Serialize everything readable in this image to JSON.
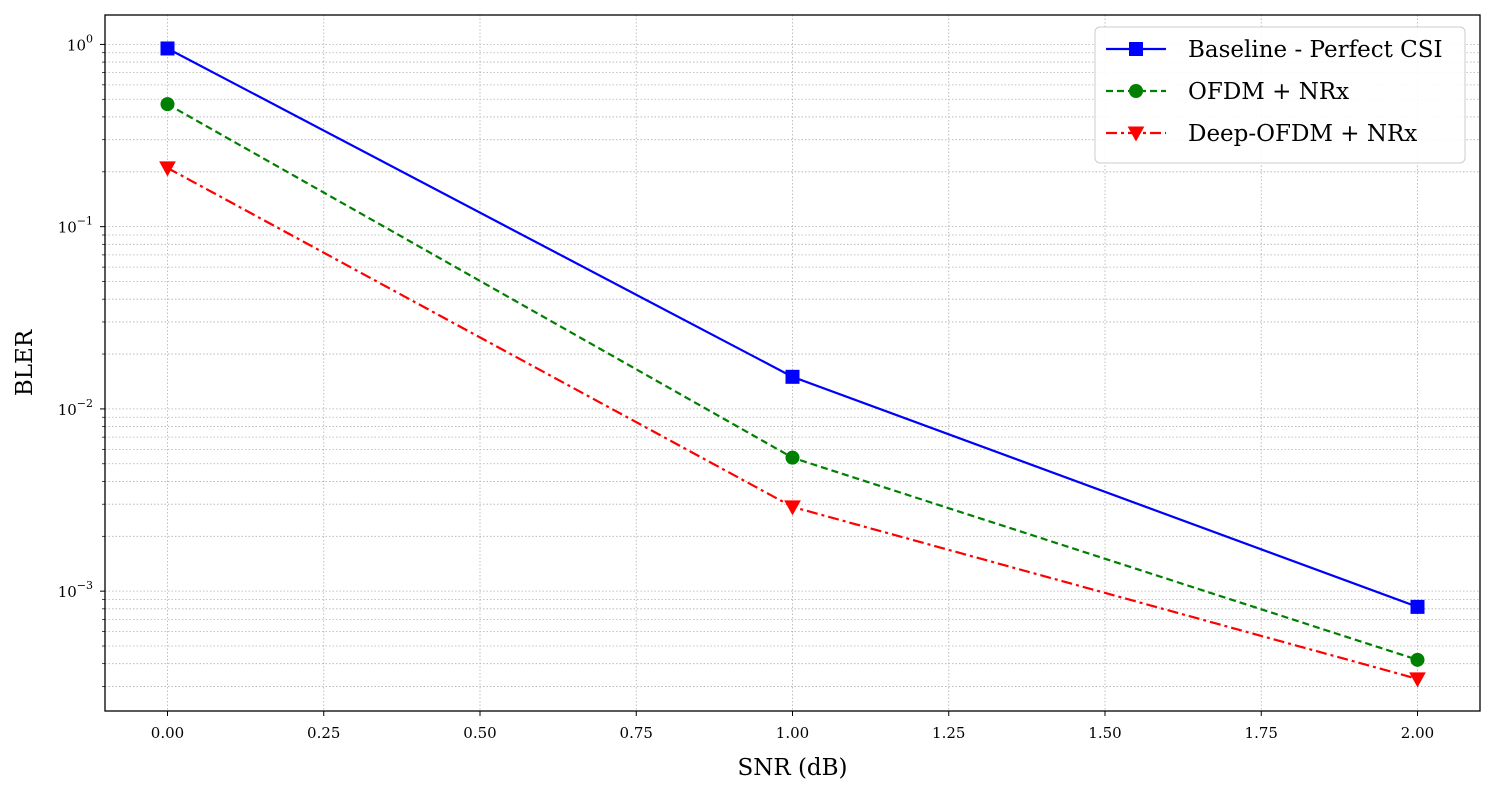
{
  "chart_data": {
    "type": "line",
    "title": "",
    "xlabel": "SNR (dB)",
    "ylabel": "BLER",
    "x_scale": "linear",
    "y_scale": "log",
    "xlim": [
      -0.1,
      2.1
    ],
    "ylim": [
      0.00022,
      1.45
    ],
    "grid": true,
    "legend_position": "top-right",
    "x_ticks": [
      0.0,
      0.25,
      0.5,
      0.75,
      1.0,
      1.25,
      1.5,
      1.75,
      2.0
    ],
    "x_tick_labels": [
      "0.00",
      "0.25",
      "0.50",
      "0.75",
      "1.00",
      "1.25",
      "1.50",
      "1.75",
      "2.00"
    ],
    "y_ticks": [
      1,
      0.1,
      0.01,
      0.001
    ],
    "y_tick_labels": [
      {
        "base": "10",
        "exp": "0"
      },
      {
        "base": "10",
        "exp": "−1"
      },
      {
        "base": "10",
        "exp": "−2"
      },
      {
        "base": "10",
        "exp": "−3"
      }
    ],
    "x": [
      0.0,
      1.0,
      2.0
    ],
    "series": [
      {
        "name": "Baseline - Perfect CSI",
        "values": [
          0.95,
          0.015,
          0.00082
        ],
        "color": "#0000ff",
        "line_style": "solid",
        "marker": "square"
      },
      {
        "name": "OFDM + NRx",
        "values": [
          0.47,
          0.0054,
          0.00042
        ],
        "color": "#008000",
        "line_style": "dashed",
        "marker": "circle"
      },
      {
        "name": "Deep-OFDM + NRx",
        "values": [
          0.21,
          0.0029,
          0.00033
        ],
        "color": "#ff0000",
        "line_style": "dashdot",
        "marker": "triangle-down"
      }
    ]
  }
}
